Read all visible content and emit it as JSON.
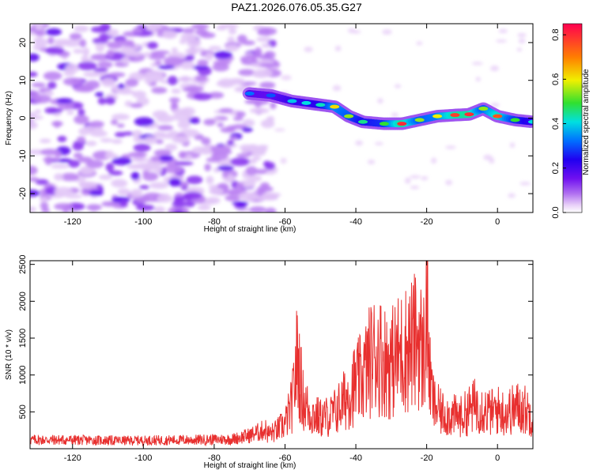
{
  "title": "PAZ1.2026.076.05.35.G27",
  "colors": {
    "snr_line": "#e8302f",
    "spectrogram": [
      "#f2e6fb",
      "#d9b6f5",
      "#a96ef0",
      "#7b1ff2",
      "#3b10f0",
      "#0060ff",
      "#00e0e0",
      "#40e040",
      "#f0f000",
      "#ff8000",
      "#ff0040"
    ]
  },
  "chart_data": [
    {
      "type": "heatmap",
      "title": "PAZ1.2026.076.05.35.G27",
      "xlabel": "Height of straight line (km)",
      "ylabel": "Frequency (Hz)",
      "xlim": [
        -132,
        10
      ],
      "ylim": [
        -25,
        25
      ],
      "xticks": [
        -120,
        -100,
        -80,
        -60,
        -40,
        -20,
        0
      ],
      "yticks": [
        -20,
        -10,
        0,
        10,
        20
      ],
      "noise_region": {
        "x_start": -132,
        "x_end": -63,
        "level": 0.15
      },
      "ridge": [
        {
          "x": -70,
          "freq": 6.5,
          "amp": 0.32
        },
        {
          "x": -64,
          "freq": 6.0,
          "amp": 0.3
        },
        {
          "x": -58,
          "freq": 4.5,
          "amp": 0.38
        },
        {
          "x": -54,
          "freq": 4.0,
          "amp": 0.4
        },
        {
          "x": -50,
          "freq": 3.5,
          "amp": 0.42
        },
        {
          "x": -46,
          "freq": 3.0,
          "amp": 0.62
        },
        {
          "x": -42,
          "freq": 0.5,
          "amp": 0.55
        },
        {
          "x": -38,
          "freq": -1.0,
          "amp": 0.45
        },
        {
          "x": -32,
          "freq": -1.5,
          "amp": 0.5
        },
        {
          "x": -27,
          "freq": -1.5,
          "amp": 0.8
        },
        {
          "x": -22,
          "freq": -0.5,
          "amp": 0.55
        },
        {
          "x": -17,
          "freq": 0.5,
          "amp": 0.6
        },
        {
          "x": -12,
          "freq": 0.8,
          "amp": 0.78
        },
        {
          "x": -8,
          "freq": 1.0,
          "amp": 0.8
        },
        {
          "x": -4,
          "freq": 2.5,
          "amp": 0.55
        },
        {
          "x": 0,
          "freq": 0.5,
          "amp": 0.75
        },
        {
          "x": 5,
          "freq": -0.5,
          "amp": 0.5
        },
        {
          "x": 10,
          "freq": -1.0,
          "amp": 0.4
        }
      ],
      "colorbar": {
        "label": "Normalized spectral amplitude",
        "range": [
          0,
          0.85
        ],
        "ticks": [
          0.0,
          0.2,
          0.4,
          0.6,
          0.8
        ],
        "tick_labels": [
          "0.0",
          "0.2",
          "0.4",
          "0.6",
          "0.8"
        ]
      }
    },
    {
      "type": "line",
      "xlabel": "Height of straight line (km)",
      "ylabel": "SNR (10 * v/v)",
      "xlim": [
        -132,
        10
      ],
      "ylim": [
        0,
        2550
      ],
      "xticks": [
        -120,
        -100,
        -80,
        -60,
        -40,
        -20,
        0
      ],
      "yticks": [
        500,
        1000,
        1500,
        2000,
        2500
      ],
      "series": [
        {
          "name": "SNR",
          "x": [
            -132,
            -125,
            -115,
            -105,
            -95,
            -85,
            -75,
            -70,
            -66,
            -63,
            -60,
            -58,
            -56.5,
            -55,
            -53,
            -50,
            -47,
            -44,
            -41,
            -38,
            -36,
            -34,
            -32,
            -30,
            -28,
            -26,
            -24,
            -22,
            -21,
            -20,
            -19,
            -18,
            -16,
            -13,
            -10,
            -8,
            -6,
            -4,
            -2,
            0,
            2,
            4,
            6,
            8,
            10
          ],
          "y": [
            120,
            120,
            115,
            110,
            115,
            120,
            130,
            180,
            250,
            300,
            450,
            800,
            1700,
            900,
            650,
            550,
            600,
            800,
            1100,
            1300,
            1600,
            1750,
            1600,
            1550,
            1700,
            1800,
            1900,
            2000,
            1600,
            2550,
            1200,
            800,
            650,
            600,
            580,
            700,
            800,
            720,
            650,
            700,
            650,
            700,
            750,
            700,
            600
          ]
        }
      ]
    }
  ]
}
